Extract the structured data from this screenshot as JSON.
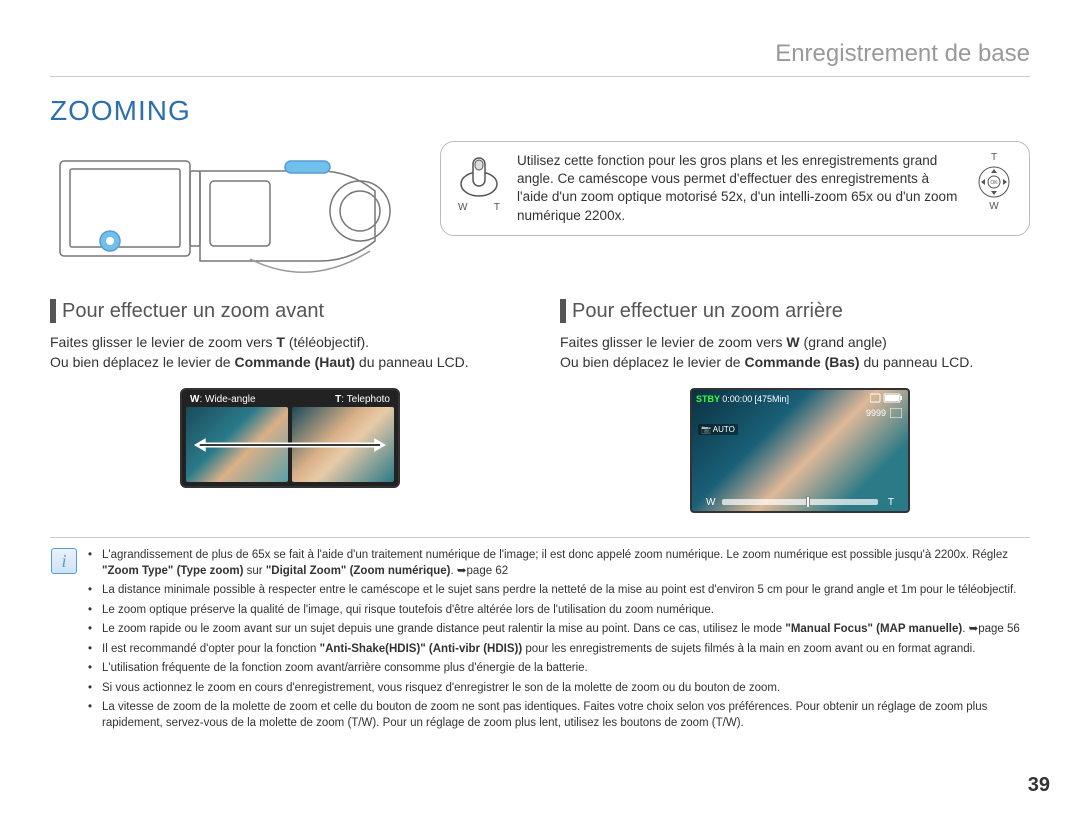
{
  "chapter": "Enregistrement de base",
  "title": "ZOOMING",
  "callout": {
    "text": "Utilisez cette fonction pour les gros plans et les enregistrements grand angle. Ce caméscope vous permet d'effectuer des enregistrements à l'aide d'un zoom optique motorisé 52x, d'un intelli-zoom 65x ou d'un zoom numérique 2200x.",
    "w": "W",
    "t": "T",
    "ok": "OK",
    "t_right": "T",
    "w_right": "W"
  },
  "left": {
    "title": "Pour effectuer un zoom avant",
    "body_pre": "Faites glisser le levier de zoom vers ",
    "body_bold1": "T",
    "body_post1": " (téléobjectif).",
    "line2_pre": "Ou bien déplacez le levier de ",
    "line2_bold": "Commande (Haut)",
    "line2_post": " du panneau LCD.",
    "fig_w": "W",
    "fig_w_desc": ": Wide-angle",
    "fig_t": "T",
    "fig_t_desc": ": Telephoto"
  },
  "right": {
    "title": "Pour effectuer un zoom arrière",
    "body_pre": "Faites glisser le levier de zoom vers ",
    "body_bold1": "W",
    "body_post1": " (grand angle)",
    "line2_pre": "Ou bien déplacez le levier de ",
    "line2_bold": "Commande (Bas)",
    "line2_post": " du panneau LCD.",
    "osd": {
      "stby": "STBY",
      "time": "0:00:00",
      "remain": "[475Min]",
      "count": "9999",
      "auto": "AUTO",
      "w": "W",
      "t": "T"
    }
  },
  "notes": [
    {
      "segments": [
        {
          "t": "L'agrandissement de plus de 65x se fait à l'aide d'un traitement numérique de l'image; il est donc appelé zoom numérique. Le zoom numérique est possible jusqu'à 2200x. Réglez "
        },
        {
          "t": "\"Zoom Type\" (Type zoom)",
          "b": true
        },
        {
          "t": " sur "
        },
        {
          "t": "\"Digital Zoom\" (Zoom numérique)",
          "b": true
        },
        {
          "t": ". ➥page 62"
        }
      ]
    },
    {
      "segments": [
        {
          "t": "La distance minimale possible à respecter entre le caméscope et le sujet sans perdre la netteté de la mise au point est d'environ 5 cm pour le grand angle et 1m pour le téléobjectif."
        }
      ]
    },
    {
      "segments": [
        {
          "t": "Le zoom optique préserve la qualité de l'image, qui risque toutefois d'être altérée lors de l'utilisation du zoom numérique."
        }
      ]
    },
    {
      "segments": [
        {
          "t": "Le zoom rapide ou le zoom avant sur un sujet depuis une grande distance peut ralentir la mise au point. Dans ce cas, utilisez le mode "
        },
        {
          "t": "\"Manual Focus\" (MAP manuelle)",
          "b": true
        },
        {
          "t": ". ➥page 56"
        }
      ]
    },
    {
      "segments": [
        {
          "t": "Il est recommandé d'opter pour la fonction "
        },
        {
          "t": "\"Anti-Shake(HDIS)\" (Anti-vibr (HDIS))",
          "b": true
        },
        {
          "t": " pour les enregistrements de sujets filmés à la main en zoom avant ou en format agrandi."
        }
      ]
    },
    {
      "segments": [
        {
          "t": "L'utilisation fréquente de la fonction zoom avant/arrière consomme plus d'énergie de la batterie."
        }
      ]
    },
    {
      "segments": [
        {
          "t": "Si vous actionnez le zoom en cours d'enregistrement, vous risquez d'enregistrer le son de la molette de zoom ou du bouton de zoom."
        }
      ]
    },
    {
      "segments": [
        {
          "t": "La vitesse de zoom de la molette de zoom et celle du bouton de zoom ne sont pas identiques. Faites votre choix selon vos préférences. Pour obtenir un réglage de zoom plus rapidement, servez-vous de la molette de zoom (T/W). Pour un réglage de zoom plus lent, utilisez les boutons de zoom (T/W)."
        }
      ]
    }
  ],
  "page": "39",
  "colors": {
    "title": "#2b6fb0",
    "chapter": "#999999",
    "section_bar": "#555555",
    "border": "#cccccc",
    "highlight": "#6fc0ea"
  }
}
